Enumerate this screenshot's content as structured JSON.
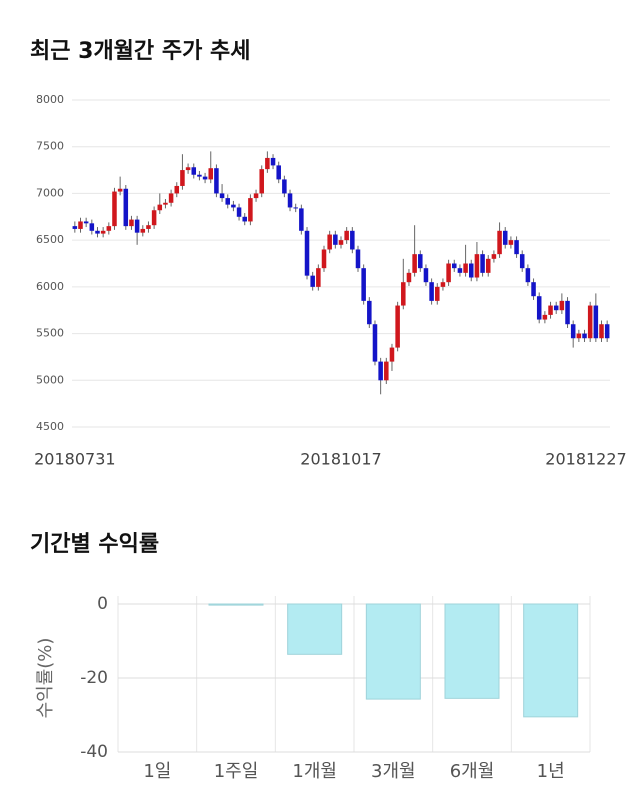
{
  "chart_data": [
    {
      "type": "candlestick",
      "title": "최근 3개월간 주가 추세",
      "categories": [
        "20180731",
        null,
        null,
        null,
        null,
        null,
        null,
        null,
        null,
        null,
        null,
        null,
        null,
        null,
        null,
        null,
        null,
        null,
        null,
        null,
        null,
        null,
        null,
        null,
        null,
        null,
        null,
        null,
        null,
        null,
        null,
        null,
        null,
        null,
        null,
        null,
        null,
        null,
        null,
        null,
        null,
        null,
        null,
        null,
        null,
        null,
        null,
        "20181017",
        null,
        null,
        null,
        null,
        null,
        null,
        null,
        null,
        null,
        null,
        null,
        null,
        null,
        null,
        null,
        null,
        null,
        null,
        null,
        null,
        null,
        null,
        null,
        null,
        null,
        null,
        null,
        null,
        null,
        null,
        null,
        null,
        null,
        null,
        null,
        null,
        null,
        null,
        null,
        null,
        null,
        null,
        null,
        null,
        null,
        null,
        "20181227"
      ],
      "ohlc": [
        [
          6650,
          6700,
          6580,
          6620
        ],
        [
          6620,
          6740,
          6580,
          6700
        ],
        [
          6700,
          6740,
          6640,
          6680
        ],
        [
          6680,
          6720,
          6560,
          6600
        ],
        [
          6600,
          6640,
          6530,
          6570
        ],
        [
          6570,
          6640,
          6530,
          6600
        ],
        [
          6600,
          6690,
          6560,
          6650
        ],
        [
          6650,
          7060,
          6610,
          7020
        ],
        [
          7020,
          7180,
          6980,
          7050
        ],
        [
          7050,
          7090,
          6610,
          6650
        ],
        [
          6650,
          6760,
          6610,
          6720
        ],
        [
          6720,
          6760,
          6450,
          6580
        ],
        [
          6580,
          6660,
          6540,
          6620
        ],
        [
          6620,
          6700,
          6580,
          6660
        ],
        [
          6660,
          6860,
          6620,
          6820
        ],
        [
          6820,
          7000,
          6780,
          6880
        ],
        [
          6880,
          6940,
          6840,
          6900
        ],
        [
          6900,
          7040,
          6860,
          7000
        ],
        [
          7000,
          7120,
          6960,
          7080
        ],
        [
          7080,
          7420,
          7040,
          7250
        ],
        [
          7250,
          7320,
          7210,
          7280
        ],
        [
          7280,
          7320,
          7160,
          7200
        ],
        [
          7200,
          7240,
          7140,
          7180
        ],
        [
          7180,
          7220,
          7110,
          7150
        ],
        [
          7150,
          7450,
          7110,
          7270
        ],
        [
          7270,
          7310,
          6960,
          7000
        ],
        [
          7000,
          7100,
          6910,
          6950
        ],
        [
          6950,
          6990,
          6840,
          6880
        ],
        [
          6880,
          6920,
          6810,
          6850
        ],
        [
          6850,
          6890,
          6710,
          6750
        ],
        [
          6750,
          6790,
          6660,
          6700
        ],
        [
          6700,
          6990,
          6660,
          6950
        ],
        [
          6950,
          7040,
          6910,
          7000
        ],
        [
          7000,
          7300,
          6960,
          7260
        ],
        [
          7260,
          7450,
          7220,
          7380
        ],
        [
          7380,
          7420,
          7260,
          7300
        ],
        [
          7300,
          7340,
          7110,
          7150
        ],
        [
          7150,
          7190,
          6960,
          7000
        ],
        [
          7000,
          7040,
          6810,
          6850
        ],
        [
          6850,
          6890,
          6800,
          6840
        ],
        [
          6840,
          6880,
          6560,
          6600
        ],
        [
          6600,
          6640,
          6080,
          6120
        ],
        [
          6120,
          6160,
          5960,
          6000
        ],
        [
          6000,
          6240,
          5960,
          6200
        ],
        [
          6200,
          6440,
          6160,
          6400
        ],
        [
          6400,
          6600,
          6360,
          6560
        ],
        [
          6560,
          6600,
          6410,
          6450
        ],
        [
          6450,
          6540,
          6410,
          6500
        ],
        [
          6500,
          6640,
          6460,
          6600
        ],
        [
          6600,
          6640,
          6360,
          6400
        ],
        [
          6400,
          6440,
          6160,
          6200
        ],
        [
          6200,
          6240,
          5810,
          5850
        ],
        [
          5850,
          5890,
          5560,
          5600
        ],
        [
          5600,
          5640,
          5160,
          5200
        ],
        [
          5200,
          5240,
          4850,
          5000
        ],
        [
          5000,
          5240,
          4960,
          5200
        ],
        [
          5200,
          5390,
          5100,
          5350
        ],
        [
          5350,
          5840,
          5310,
          5800
        ],
        [
          5800,
          6300,
          5760,
          6050
        ],
        [
          6050,
          6190,
          6010,
          6150
        ],
        [
          6150,
          6660,
          6110,
          6350
        ],
        [
          6350,
          6390,
          6160,
          6200
        ],
        [
          6200,
          6240,
          6010,
          6050
        ],
        [
          6050,
          6090,
          5810,
          5850
        ],
        [
          5850,
          6040,
          5810,
          6000
        ],
        [
          6000,
          6090,
          5960,
          6050
        ],
        [
          6050,
          6290,
          6010,
          6250
        ],
        [
          6250,
          6290,
          6160,
          6200
        ],
        [
          6200,
          6240,
          6110,
          6150
        ],
        [
          6150,
          6450,
          6110,
          6250
        ],
        [
          6250,
          6290,
          6060,
          6100
        ],
        [
          6100,
          6480,
          6060,
          6350
        ],
        [
          6350,
          6390,
          6110,
          6150
        ],
        [
          6150,
          6340,
          6110,
          6300
        ],
        [
          6300,
          6390,
          6260,
          6350
        ],
        [
          6350,
          6690,
          6310,
          6600
        ],
        [
          6600,
          6640,
          6410,
          6450
        ],
        [
          6450,
          6540,
          6410,
          6500
        ],
        [
          6500,
          6540,
          6310,
          6350
        ],
        [
          6350,
          6390,
          6160,
          6200
        ],
        [
          6200,
          6240,
          6010,
          6050
        ],
        [
          6050,
          6090,
          5860,
          5900
        ],
        [
          5900,
          5940,
          5610,
          5650
        ],
        [
          5650,
          5740,
          5610,
          5700
        ],
        [
          5700,
          5840,
          5660,
          5800
        ],
        [
          5800,
          5840,
          5710,
          5750
        ],
        [
          5750,
          5930,
          5710,
          5850
        ],
        [
          5850,
          5890,
          5560,
          5600
        ],
        [
          5600,
          5640,
          5350,
          5450
        ],
        [
          5450,
          5540,
          5410,
          5500
        ],
        [
          5500,
          5540,
          5410,
          5450
        ],
        [
          5450,
          5840,
          5410,
          5800
        ],
        [
          5800,
          5930,
          5410,
          5450
        ],
        [
          5450,
          5640,
          5410,
          5600
        ],
        [
          5600,
          5640,
          5410,
          5450
        ]
      ],
      "up_color": "#d0171d",
      "down_color": "#1414c8",
      "ylim": [
        4500,
        8000
      ],
      "yticks": [
        4500,
        5000,
        5500,
        6000,
        6500,
        7000,
        7500,
        8000
      ],
      "grid": true
    },
    {
      "type": "bar",
      "title": "기간별 수익률",
      "y_label": "수익률(%)",
      "categories": [
        "1일",
        "1주일",
        "1개월",
        "3개월",
        "6개월",
        "1년"
      ],
      "values": [
        0,
        -0.3,
        -13.6,
        -25.7,
        -25.5,
        -30.5
      ],
      "color": "#b3ebf2",
      "ylim": [
        -40,
        0
      ],
      "yticks": [
        -40,
        -20,
        0
      ],
      "grid": true
    }
  ]
}
